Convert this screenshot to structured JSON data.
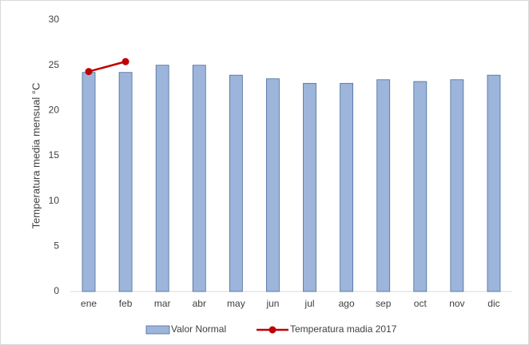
{
  "chart_data": {
    "type": "bar",
    "y_label": "Temperatura media mensual °C",
    "categories": [
      "ene",
      "feb",
      "mar",
      "abr",
      "may",
      "jun",
      "jul",
      "ago",
      "sep",
      "oct",
      "nov",
      "dic"
    ],
    "series": [
      {
        "name": "Valor Normal",
        "type": "bar",
        "color": "#9db5da",
        "values": [
          24.2,
          24.2,
          25.0,
          25.0,
          23.9,
          23.5,
          23.0,
          23.0,
          23.4,
          23.2,
          23.4,
          23.9
        ]
      },
      {
        "name": "Temperatura madia 2017",
        "type": "line",
        "color": "#c00000",
        "values": [
          24.3,
          25.4,
          null,
          null,
          null,
          null,
          null,
          null,
          null,
          null,
          null,
          null
        ]
      }
    ],
    "ylim": [
      0,
      30
    ],
    "yticks": [
      0,
      5,
      10,
      15,
      20,
      25,
      30
    ],
    "grid": false,
    "legend": "bottom"
  }
}
